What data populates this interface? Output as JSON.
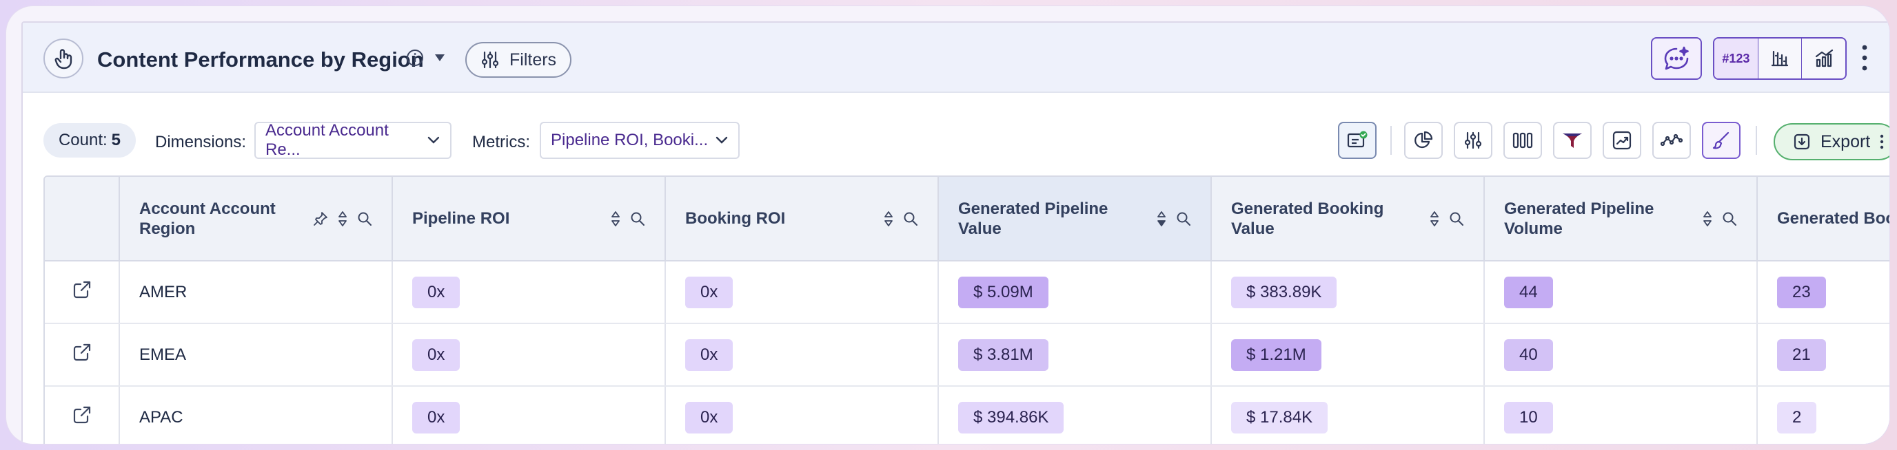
{
  "header": {
    "title": "Content Performance by Region",
    "filters_label": "Filters",
    "viz_number_label": "#123"
  },
  "toolbar": {
    "count_label": "Count:",
    "count_value": "5",
    "dimensions_label": "Dimensions:",
    "dimensions_value": "Account Account Re...",
    "metrics_label": "Metrics:",
    "metrics_value": "Pipeline ROI, Booki...",
    "export_label": "Export"
  },
  "table": {
    "columns": [
      "Account Account Region",
      "Pipeline ROI",
      "Booking ROI",
      "Generated Pipeline Value",
      "Generated Booking Value",
      "Generated Pipeline Volume",
      "Generated Booking Volume"
    ],
    "rows": [
      {
        "region": "AMER",
        "pipeline_roi": "0x",
        "booking_roi": "0x",
        "gen_pipeline_value": "$ 5.09M",
        "gen_booking_value": "$ 383.89K",
        "gen_pipeline_volume": "44",
        "gen_booking_volume": "23"
      },
      {
        "region": "EMEA",
        "pipeline_roi": "0x",
        "booking_roi": "0x",
        "gen_pipeline_value": "$ 3.81M",
        "gen_booking_value": "$ 1.21M",
        "gen_pipeline_volume": "40",
        "gen_booking_volume": "21"
      },
      {
        "region": "APAC",
        "pipeline_roi": "0x",
        "booking_roi": "0x",
        "gen_pipeline_value": "$ 394.86K",
        "gen_booking_value": "$ 17.84K",
        "gen_pipeline_volume": "10",
        "gen_booking_volume": "2"
      }
    ]
  },
  "colors": {
    "accent": "#6a4fc4",
    "heat_low": "#e9e0fc",
    "heat_mid": "#d3c2f6",
    "heat_high": "#c4acf3",
    "export_green": "#55b06e"
  }
}
